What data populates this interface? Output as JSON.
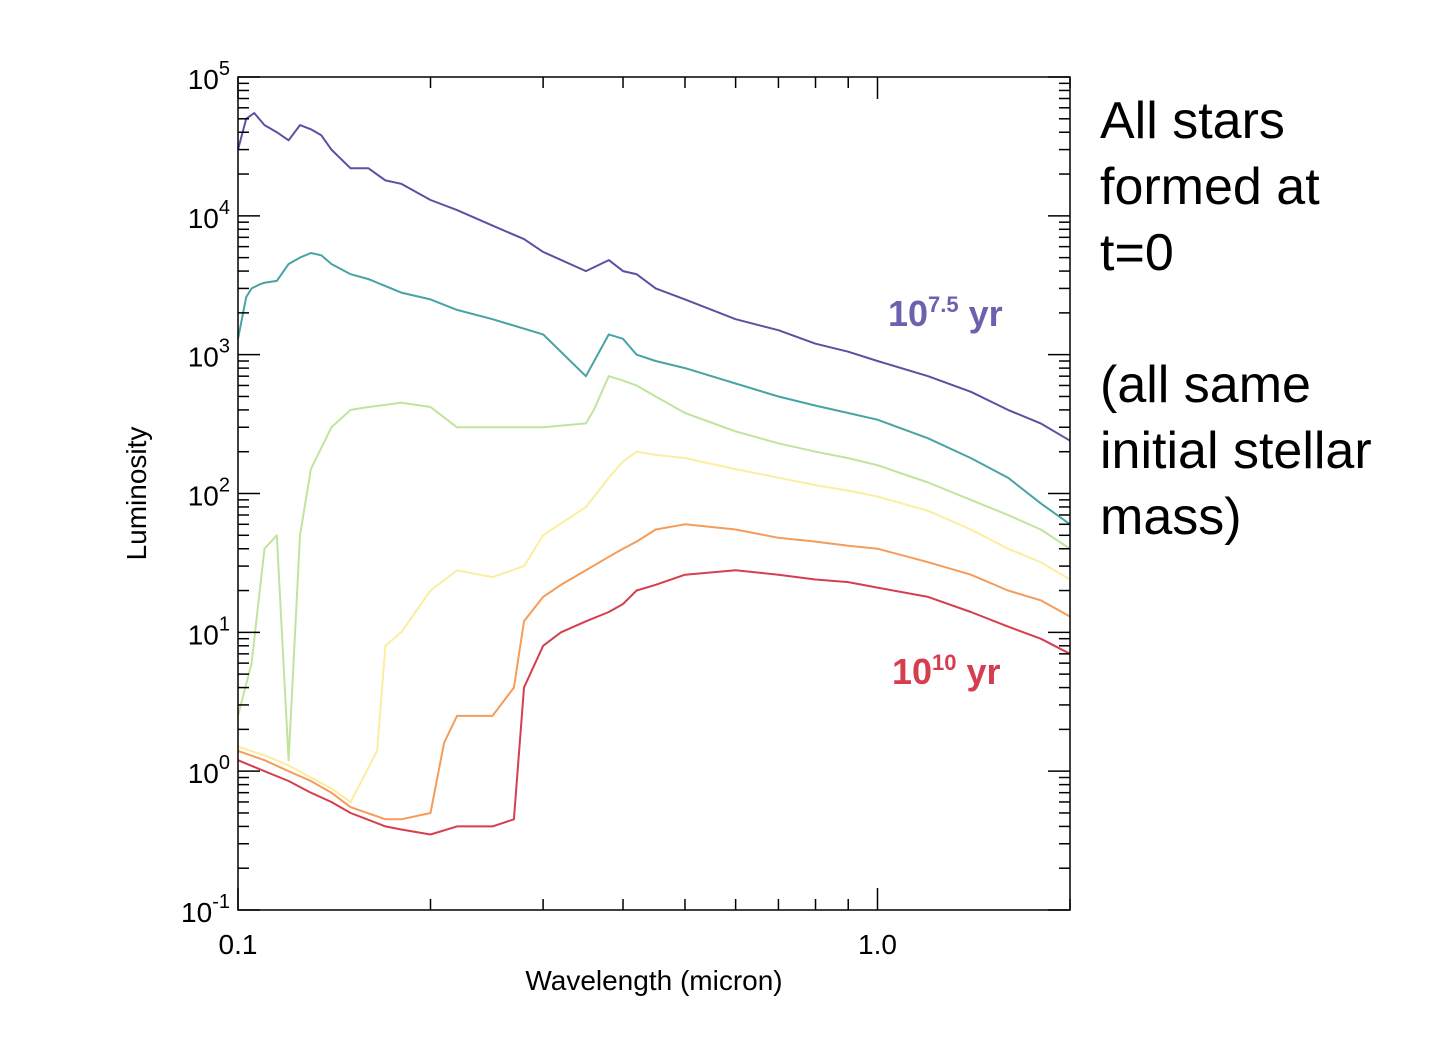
{
  "chart_data": {
    "type": "line",
    "xlabel": "Wavelength (micron)",
    "ylabel": "Luminosity",
    "xscale": "log",
    "yscale": "log",
    "xlim": [
      0.1,
      2.0
    ],
    "ylim": [
      0.1,
      100000
    ],
    "x_ticks": [
      {
        "value": 0.1,
        "label": "0.1"
      },
      {
        "value": 1.0,
        "label": "1.0"
      }
    ],
    "y_ticks": [
      {
        "value": 0.1,
        "base": "10",
        "exp": "-1"
      },
      {
        "value": 1,
        "base": "10",
        "exp": "0"
      },
      {
        "value": 10,
        "base": "10",
        "exp": "1"
      },
      {
        "value": 100,
        "base": "10",
        "exp": "2"
      },
      {
        "value": 1000,
        "base": "10",
        "exp": "3"
      },
      {
        "value": 10000,
        "base": "10",
        "exp": "4"
      },
      {
        "value": 100000,
        "base": "10",
        "exp": "5"
      }
    ],
    "grid": false,
    "series": [
      {
        "color": "#5e4fa2",
        "x": [
          0.1,
          0.103,
          0.106,
          0.11,
          0.115,
          0.12,
          0.125,
          0.13,
          0.135,
          0.14,
          0.15,
          0.16,
          0.17,
          0.18,
          0.2,
          0.22,
          0.25,
          0.28,
          0.3,
          0.35,
          0.38,
          0.4,
          0.42,
          0.45,
          0.5,
          0.6,
          0.7,
          0.8,
          0.9,
          1.0,
          1.2,
          1.4,
          1.6,
          1.8,
          2.0
        ],
        "y": [
          30000,
          50000,
          55000,
          45000,
          40000,
          35000,
          45000,
          42000,
          38000,
          30000,
          22000,
          22000,
          18000,
          17000,
          13000,
          11000,
          8500,
          6800,
          5500,
          4000,
          4800,
          4000,
          3800,
          3000,
          2500,
          1800,
          1500,
          1200,
          1050,
          900,
          700,
          540,
          400,
          320,
          240
        ]
      },
      {
        "color": "#48a3a4",
        "x": [
          0.1,
          0.103,
          0.105,
          0.108,
          0.11,
          0.115,
          0.12,
          0.125,
          0.13,
          0.135,
          0.14,
          0.15,
          0.16,
          0.18,
          0.2,
          0.22,
          0.25,
          0.3,
          0.35,
          0.38,
          0.4,
          0.42,
          0.45,
          0.5,
          0.6,
          0.7,
          0.8,
          0.9,
          1.0,
          1.2,
          1.4,
          1.6,
          1.8,
          2.0
        ],
        "y": [
          1300,
          2600,
          3000,
          3200,
          3300,
          3400,
          4500,
          5000,
          5400,
          5200,
          4500,
          3800,
          3500,
          2800,
          2500,
          2100,
          1800,
          1400,
          700,
          1400,
          1300,
          1000,
          900,
          800,
          620,
          500,
          430,
          380,
          340,
          250,
          180,
          130,
          85,
          60
        ]
      },
      {
        "color": "#c1e49d",
        "x": [
          0.1,
          0.105,
          0.11,
          0.115,
          0.12,
          0.125,
          0.13,
          0.14,
          0.15,
          0.16,
          0.18,
          0.2,
          0.22,
          0.25,
          0.28,
          0.3,
          0.35,
          0.36,
          0.38,
          0.4,
          0.42,
          0.45,
          0.5,
          0.6,
          0.7,
          0.8,
          0.9,
          1.0,
          1.2,
          1.4,
          1.6,
          1.8,
          2.0
        ],
        "y": [
          2.5,
          6,
          40,
          50,
          1.2,
          50,
          150,
          300,
          400,
          420,
          450,
          420,
          300,
          300,
          300,
          300,
          320,
          400,
          700,
          650,
          600,
          500,
          380,
          280,
          230,
          200,
          180,
          160,
          120,
          90,
          70,
          55,
          40
        ]
      },
      {
        "color": "#fbeea0",
        "x": [
          0.1,
          0.11,
          0.12,
          0.13,
          0.14,
          0.15,
          0.165,
          0.17,
          0.18,
          0.2,
          0.22,
          0.25,
          0.28,
          0.3,
          0.35,
          0.38,
          0.4,
          0.42,
          0.45,
          0.5,
          0.6,
          0.7,
          0.8,
          0.9,
          1.0,
          1.2,
          1.4,
          1.6,
          1.8,
          2.0
        ],
        "y": [
          1.5,
          1.3,
          1.1,
          0.9,
          0.75,
          0.6,
          1.4,
          8,
          10,
          20,
          28,
          25,
          30,
          50,
          80,
          130,
          170,
          200,
          190,
          180,
          150,
          130,
          115,
          105,
          95,
          75,
          55,
          40,
          32,
          24
        ]
      },
      {
        "color": "#f59c5a",
        "x": [
          0.1,
          0.11,
          0.12,
          0.13,
          0.14,
          0.15,
          0.17,
          0.18,
          0.2,
          0.21,
          0.22,
          0.25,
          0.27,
          0.28,
          0.3,
          0.32,
          0.35,
          0.38,
          0.4,
          0.42,
          0.45,
          0.5,
          0.6,
          0.7,
          0.8,
          0.9,
          1.0,
          1.2,
          1.4,
          1.6,
          1.8,
          2.0
        ],
        "y": [
          1.4,
          1.2,
          1.0,
          0.85,
          0.7,
          0.55,
          0.45,
          0.45,
          0.5,
          1.6,
          2.5,
          2.5,
          4.0,
          12,
          18,
          22,
          28,
          35,
          40,
          45,
          55,
          60,
          55,
          48,
          45,
          42,
          40,
          32,
          26,
          20,
          17,
          13
        ]
      },
      {
        "color": "#d53e4f",
        "x": [
          0.1,
          0.11,
          0.12,
          0.13,
          0.14,
          0.15,
          0.17,
          0.18,
          0.2,
          0.22,
          0.25,
          0.27,
          0.28,
          0.3,
          0.32,
          0.35,
          0.38,
          0.4,
          0.42,
          0.45,
          0.5,
          0.6,
          0.7,
          0.8,
          0.9,
          1.0,
          1.2,
          1.4,
          1.6,
          1.8,
          2.0
        ],
        "y": [
          1.2,
          1.0,
          0.85,
          0.7,
          0.6,
          0.5,
          0.4,
          0.38,
          0.35,
          0.4,
          0.4,
          0.45,
          4,
          8,
          10,
          12,
          14,
          16,
          20,
          22,
          26,
          28,
          26,
          24,
          23,
          21,
          18,
          14,
          11,
          9,
          7
        ]
      }
    ],
    "annotations": [
      {
        "base": "10",
        "exp": "7.5",
        "unit": " yr",
        "color": "#6a62ad"
      },
      {
        "base": "10",
        "exp": "10",
        "unit": " yr",
        "color": "#d53e4f"
      }
    ]
  },
  "side_note": {
    "lines": [
      "All stars",
      "formed at",
      "t=0",
      "",
      "(all same",
      "initial stellar",
      "mass)"
    ]
  }
}
